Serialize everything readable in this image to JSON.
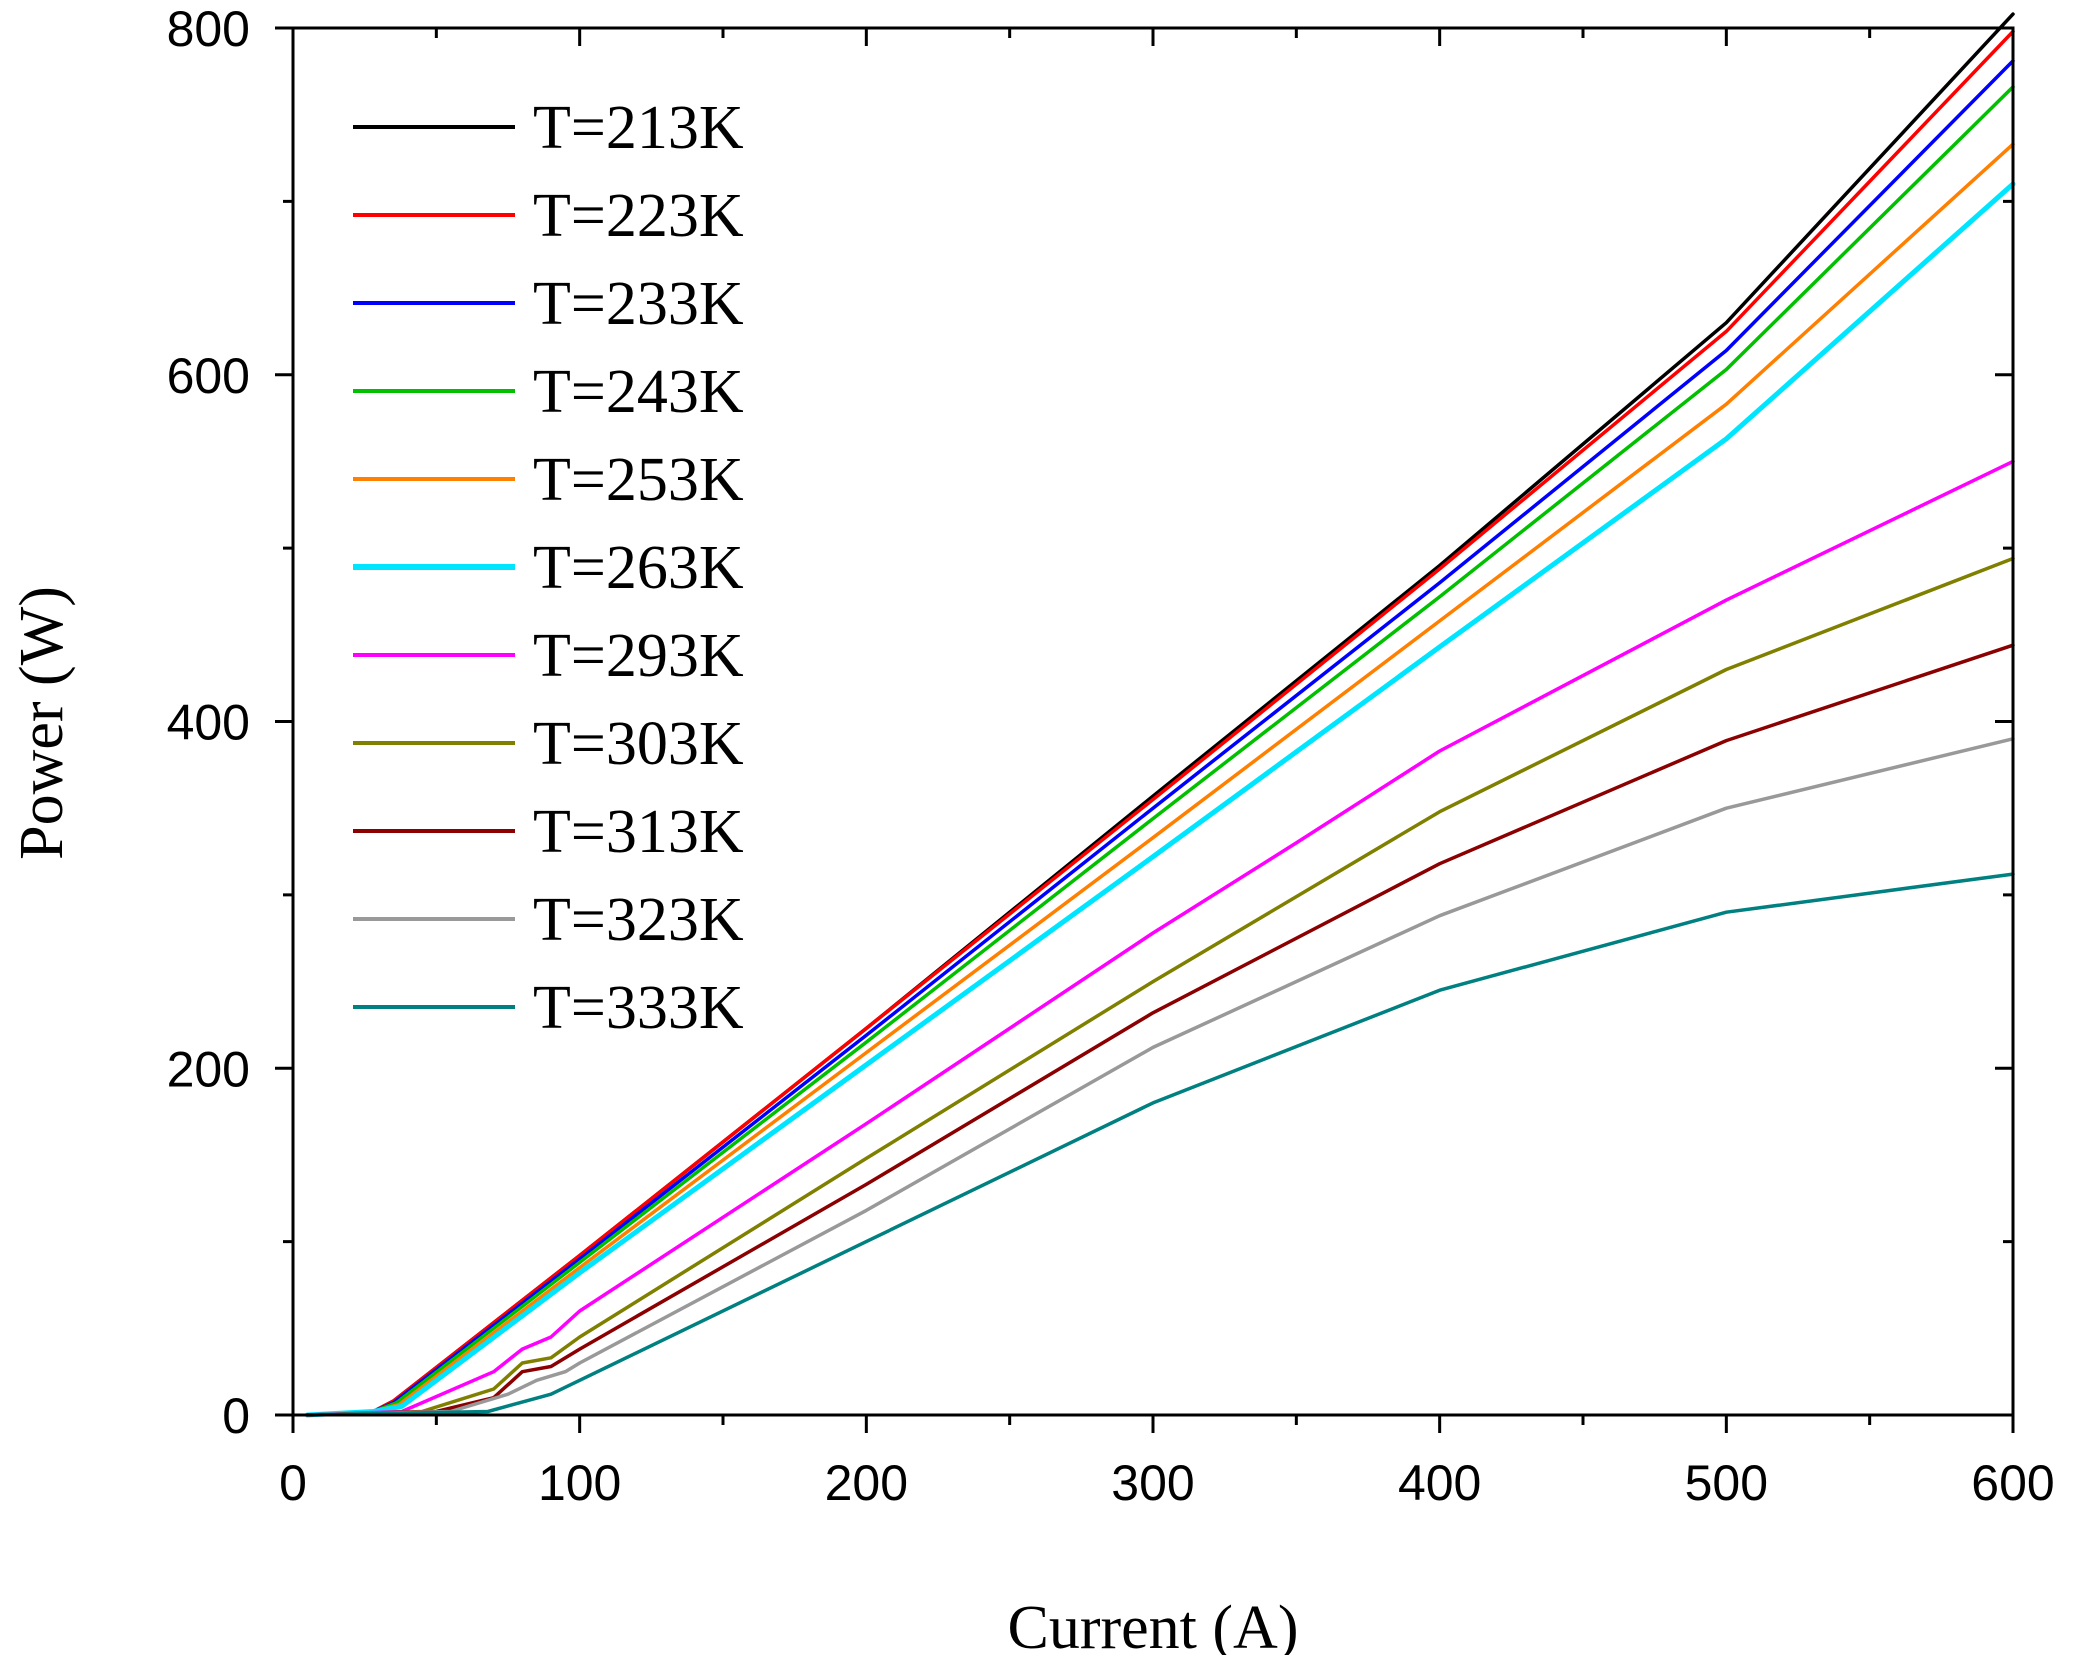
{
  "chart_data": {
    "type": "line",
    "title": "",
    "xlabel": "Current (A)",
    "ylabel": "Power (W)",
    "xlim": [
      0,
      600
    ],
    "ylim": [
      0,
      800
    ],
    "xticks": [
      0,
      100,
      200,
      300,
      400,
      500,
      600
    ],
    "yticks": [
      0,
      200,
      400,
      600,
      800
    ],
    "xtick_labels": [
      "0",
      "100",
      "200",
      "300",
      "400",
      "500",
      "600"
    ],
    "ytick_labels": [
      "0",
      "200",
      "400",
      "600",
      "800"
    ],
    "minor_xticks": [
      50,
      150,
      250,
      350,
      450,
      550
    ],
    "minor_yticks": [
      100,
      300,
      500,
      700
    ],
    "grid": false,
    "legend_position": "top-left",
    "series": [
      {
        "name": "T=213K",
        "color": "#000000",
        "points": [
          [
            5,
            0
          ],
          [
            28,
            2
          ],
          [
            35,
            8
          ],
          [
            100,
            92
          ],
          [
            200,
            223
          ],
          [
            300,
            357
          ],
          [
            400,
            490
          ],
          [
            500,
            630
          ],
          [
            600,
            808
          ]
        ]
      },
      {
        "name": "T=223K",
        "color": "#ff0000",
        "points": [
          [
            5,
            0
          ],
          [
            28,
            2
          ],
          [
            35,
            8
          ],
          [
            100,
            92
          ],
          [
            200,
            223
          ],
          [
            300,
            355
          ],
          [
            400,
            488
          ],
          [
            500,
            625
          ],
          [
            600,
            798
          ]
        ]
      },
      {
        "name": "T=233K",
        "color": "#0000ff",
        "points": [
          [
            5,
            0
          ],
          [
            28,
            2
          ],
          [
            35,
            7
          ],
          [
            100,
            90
          ],
          [
            200,
            219
          ],
          [
            300,
            350
          ],
          [
            400,
            480
          ],
          [
            500,
            614
          ],
          [
            600,
            781
          ]
        ]
      },
      {
        "name": "T=243K",
        "color": "#00c000",
        "points": [
          [
            5,
            0
          ],
          [
            28,
            2
          ],
          [
            36,
            7
          ],
          [
            100,
            88
          ],
          [
            200,
            215
          ],
          [
            300,
            344
          ],
          [
            400,
            472
          ],
          [
            500,
            603
          ],
          [
            600,
            766
          ]
        ]
      },
      {
        "name": "T=253K",
        "color": "#ff8000",
        "points": [
          [
            5,
            0
          ],
          [
            28,
            2
          ],
          [
            37,
            6
          ],
          [
            100,
            85
          ],
          [
            200,
            209
          ],
          [
            300,
            333
          ],
          [
            400,
            458
          ],
          [
            500,
            583
          ],
          [
            600,
            733
          ]
        ]
      },
      {
        "name": "T=263K",
        "color": "#00e5ff",
        "points": [
          [
            5,
            0
          ],
          [
            28,
            2
          ],
          [
            38,
            5
          ],
          [
            100,
            82
          ],
          [
            200,
            202
          ],
          [
            300,
            322
          ],
          [
            400,
            443
          ],
          [
            500,
            563
          ],
          [
            600,
            710
          ]
        ]
      },
      {
        "name": "T=293K",
        "color": "#ff00ff",
        "points": [
          [
            5,
            0
          ],
          [
            38,
            2
          ],
          [
            70,
            25
          ],
          [
            80,
            38
          ],
          [
            90,
            45
          ],
          [
            100,
            60
          ],
          [
            200,
            168
          ],
          [
            300,
            278
          ],
          [
            350,
            330
          ],
          [
            400,
            383
          ],
          [
            500,
            470
          ],
          [
            600,
            550
          ]
        ]
      },
      {
        "name": "T=303K",
        "color": "#808000",
        "points": [
          [
            5,
            0
          ],
          [
            45,
            2
          ],
          [
            70,
            15
          ],
          [
            80,
            30
          ],
          [
            90,
            33
          ],
          [
            100,
            45
          ],
          [
            200,
            148
          ],
          [
            300,
            250
          ],
          [
            400,
            348
          ],
          [
            500,
            430
          ],
          [
            600,
            494
          ]
        ]
      },
      {
        "name": "T=313K",
        "color": "#8b0000",
        "points": [
          [
            5,
            0
          ],
          [
            50,
            2
          ],
          [
            70,
            10
          ],
          [
            80,
            25
          ],
          [
            90,
            28
          ],
          [
            100,
            38
          ],
          [
            200,
            133
          ],
          [
            300,
            232
          ],
          [
            400,
            318
          ],
          [
            500,
            389
          ],
          [
            600,
            444
          ]
        ]
      },
      {
        "name": "T=323K",
        "color": "#999999",
        "points": [
          [
            5,
            0
          ],
          [
            55,
            2
          ],
          [
            75,
            12
          ],
          [
            85,
            20
          ],
          [
            95,
            25
          ],
          [
            100,
            30
          ],
          [
            200,
            118
          ],
          [
            300,
            212
          ],
          [
            400,
            288
          ],
          [
            500,
            350
          ],
          [
            600,
            390
          ]
        ]
      },
      {
        "name": "T=333K",
        "color": "#008080",
        "points": [
          [
            5,
            0
          ],
          [
            68,
            2
          ],
          [
            90,
            12
          ],
          [
            100,
            20
          ],
          [
            200,
            100
          ],
          [
            300,
            180
          ],
          [
            400,
            245
          ],
          [
            500,
            290
          ],
          [
            600,
            312
          ]
        ]
      }
    ]
  }
}
